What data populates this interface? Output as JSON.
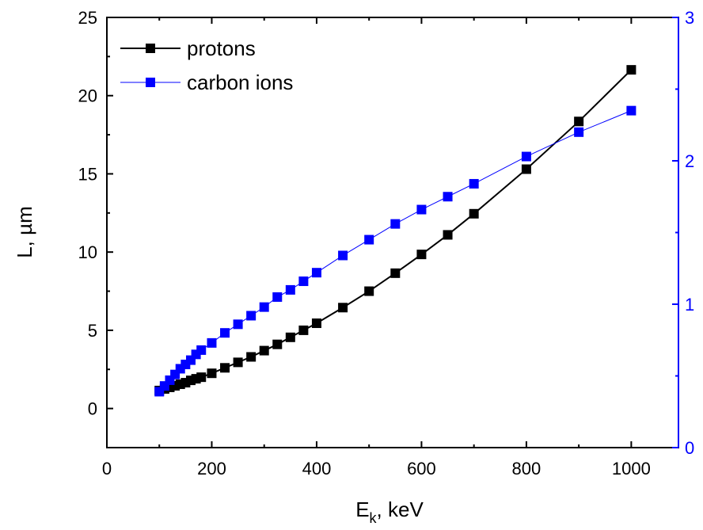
{
  "chart_data": {
    "type": "line",
    "title": "",
    "xlabel_main": "E",
    "xlabel_sub": "k",
    "xlabel_rest": ", keV",
    "ylabel": "L, µm",
    "y2label": "",
    "xlim": [
      0,
      1090
    ],
    "ylim": [
      -2.5,
      25
    ],
    "y2lim": [
      0,
      3
    ],
    "x_ticks": [
      0,
      200,
      400,
      600,
      800,
      1000
    ],
    "y_ticks": [
      0,
      5,
      10,
      15,
      20,
      25
    ],
    "y2_ticks": [
      0,
      1,
      2,
      3
    ],
    "grid": false,
    "legend_position": "top-left",
    "series": [
      {
        "name": "protons",
        "axis": "left",
        "color": "#000000",
        "x": [
          100,
          110,
          120,
          130,
          140,
          150,
          160,
          170,
          180,
          200,
          225,
          250,
          275,
          300,
          325,
          350,
          375,
          400,
          450,
          500,
          550,
          600,
          650,
          700,
          800,
          900,
          1000
        ],
        "y": [
          1.15,
          1.25,
          1.35,
          1.45,
          1.55,
          1.65,
          1.8,
          1.9,
          2.0,
          2.25,
          2.6,
          2.95,
          3.3,
          3.7,
          4.1,
          4.55,
          5.0,
          5.45,
          6.45,
          7.5,
          8.65,
          9.85,
          11.1,
          12.45,
          15.3,
          18.35,
          21.65
        ]
      },
      {
        "name": "carbon ions",
        "axis": "right",
        "color": "#0000ff",
        "x": [
          100,
          110,
          120,
          130,
          140,
          150,
          160,
          170,
          180,
          200,
          225,
          250,
          275,
          300,
          325,
          350,
          375,
          400,
          450,
          500,
          550,
          600,
          650,
          700,
          800,
          900,
          1000
        ],
        "y": [
          0.39,
          0.43,
          0.47,
          0.51,
          0.55,
          0.58,
          0.61,
          0.65,
          0.68,
          0.73,
          0.8,
          0.86,
          0.92,
          0.98,
          1.05,
          1.1,
          1.16,
          1.22,
          1.34,
          1.45,
          1.56,
          1.66,
          1.75,
          1.84,
          2.03,
          2.2,
          2.35
        ]
      }
    ]
  }
}
